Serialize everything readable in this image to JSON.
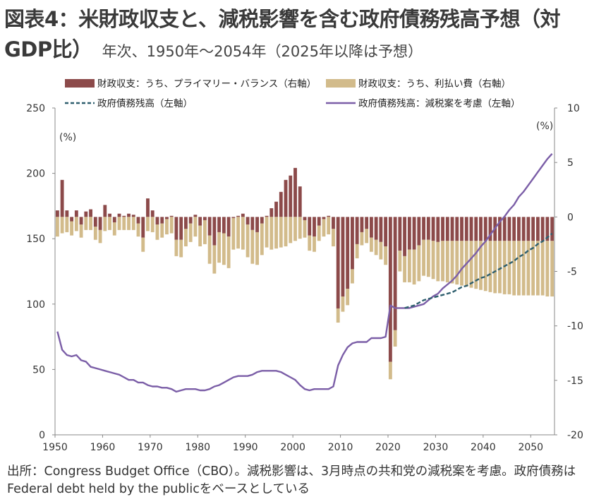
{
  "title_main": "図表4：米財政収支と、減税影響を含む政府債務残高予想（対GDP比）",
  "title_sub": "年次、1950年～2054年（2025年以降は予想）",
  "source": "出所：Congress Budget Office（CBO）。減税影響は、3月時点の共和党の減税案を考慮。政府債務はFederal debt held by the publicをベースとしている",
  "colors": {
    "primary": "#8c4a4a",
    "interest": "#d2bb8b",
    "debt_base": "#2e5f6e",
    "debt_cut": "#7b5ea7"
  },
  "chart_data": {
    "type": "bar+line",
    "legend": [
      "財政収支：うち、プライマリー・バランス（右軸）",
      "財政収支：うち、利払い費（右軸）",
      "政府債務残高（左軸）",
      "政府債務残高：減税案を考慮（左軸）"
    ],
    "left_axis": {
      "unit": "(%)",
      "ylim": [
        0,
        250
      ],
      "ticks": [
        0,
        50,
        100,
        150,
        200,
        250
      ]
    },
    "right_axis": {
      "unit": "(%)",
      "ylim": [
        -20,
        10
      ],
      "ticks": [
        -20,
        -15,
        -10,
        -5,
        0,
        5,
        10
      ]
    },
    "x_ticks": [
      1950,
      1960,
      1970,
      1980,
      1990,
      2000,
      2010,
      2020,
      2030,
      2040,
      2050
    ],
    "years": [
      1950,
      1951,
      1952,
      1953,
      1954,
      1955,
      1956,
      1957,
      1958,
      1959,
      1960,
      1961,
      1962,
      1963,
      1964,
      1965,
      1966,
      1967,
      1968,
      1969,
      1970,
      1971,
      1972,
      1973,
      1974,
      1975,
      1976,
      1977,
      1978,
      1979,
      1980,
      1981,
      1982,
      1983,
      1984,
      1985,
      1986,
      1987,
      1988,
      1989,
      1990,
      1991,
      1992,
      1993,
      1994,
      1995,
      1996,
      1997,
      1998,
      1999,
      2000,
      2001,
      2002,
      2003,
      2004,
      2005,
      2006,
      2007,
      2008,
      2009,
      2010,
      2011,
      2012,
      2013,
      2014,
      2015,
      2016,
      2017,
      2018,
      2019,
      2020,
      2021,
      2022,
      2023,
      2024,
      2025,
      2026,
      2027,
      2028,
      2029,
      2030,
      2031,
      2032,
      2033,
      2034,
      2035,
      2036,
      2037,
      2038,
      2039,
      2040,
      2041,
      2042,
      2043,
      2044,
      2045,
      2046,
      2047,
      2048,
      2049,
      2050,
      2051,
      2052,
      2053,
      2054
    ],
    "series": [
      {
        "name": "財政収支：うち、プライマリー・バランス（右軸）",
        "axis": "right",
        "values": [
          0.6,
          3.4,
          0.6,
          -0.4,
          0.6,
          -0.7,
          0.5,
          0.7,
          -0.9,
          -1.2,
          1.1,
          0.3,
          -0.5,
          0.3,
          0.1,
          0.3,
          0.2,
          -0.6,
          -1.9,
          1.7,
          0.6,
          -0.7,
          -0.6,
          -0.2,
          0.1,
          -2.1,
          -2.1,
          -1.1,
          -0.6,
          0.2,
          -0.8,
          -0.3,
          -1.7,
          -2.6,
          -1.4,
          -1.5,
          -1.8,
          -0.1,
          0.1,
          0.3,
          -0.7,
          -1.2,
          -1.4,
          -0.6,
          0.1,
          0.8,
          1.4,
          2.3,
          3.4,
          3.8,
          4.5,
          2.8,
          -0.3,
          -1.7,
          -1.8,
          -0.8,
          -0.2,
          0.1,
          -1.1,
          -8.4,
          -7.3,
          -6.6,
          -4.8,
          -2.5,
          -1.4,
          -1.1,
          -1.9,
          -2.1,
          -2.3,
          -2.7,
          -13.3,
          -10.4,
          -3.1,
          -3.6,
          -3.0,
          -3.0,
          -2.6,
          -2.1,
          -2.1,
          -2.2,
          -2.3,
          -2.2,
          -2.2,
          -2.2,
          -2.2,
          -2.2,
          -2.2,
          -2.2,
          -2.2,
          -2.2,
          -2.2,
          -2.2,
          -2.2,
          -2.2,
          -2.2,
          -2.2,
          -2.2,
          -2.2,
          -2.2,
          -2.2,
          -2.2,
          -2.2,
          -2.2,
          -2.2,
          -2.2
        ]
      },
      {
        "name": "財政収支：うち、利払い費（右軸）",
        "axis": "right",
        "values": [
          -1.8,
          -1.5,
          -1.4,
          -1.3,
          -1.3,
          -1.2,
          -1.2,
          -1.2,
          -1.2,
          -1.2,
          -1.3,
          -1.2,
          -1.2,
          -1.2,
          -1.2,
          -1.2,
          -1.2,
          -1.2,
          -1.3,
          -1.3,
          -1.4,
          -1.4,
          -1.3,
          -1.4,
          -1.5,
          -1.5,
          -1.6,
          -1.6,
          -1.7,
          -1.8,
          -1.9,
          -2.2,
          -2.6,
          -2.6,
          -2.8,
          -2.9,
          -2.9,
          -2.9,
          -2.9,
          -3.0,
          -3.0,
          -3.1,
          -3.0,
          -2.9,
          -2.8,
          -3.0,
          -2.9,
          -2.8,
          -2.7,
          -2.4,
          -2.2,
          -2.0,
          -1.6,
          -1.4,
          -1.4,
          -1.4,
          -1.6,
          -1.6,
          -1.6,
          -1.3,
          -1.4,
          -1.5,
          -1.3,
          -1.3,
          -1.2,
          -1.3,
          -1.3,
          -1.4,
          -1.6,
          -1.7,
          -1.6,
          -1.5,
          -1.9,
          -2.4,
          -3.0,
          -3.2,
          -3.3,
          -3.3,
          -3.4,
          -3.5,
          -3.6,
          -3.7,
          -3.8,
          -3.9,
          -4.0,
          -4.1,
          -4.2,
          -4.3,
          -4.4,
          -4.5,
          -4.6,
          -4.7,
          -4.8,
          -4.8,
          -4.9,
          -4.9,
          -5.0,
          -5.0,
          -5.0,
          -5.0,
          -5.0,
          -5.0,
          -5.0,
          -5.1,
          -5.1
        ]
      },
      {
        "name": "政府債務残高（左軸）",
        "axis": "left",
        "x": [
          2023,
          2024,
          2025,
          2026,
          2027,
          2028,
          2029,
          2030,
          2031,
          2032,
          2033,
          2034,
          2035,
          2036,
          2037,
          2038,
          2039,
          2040,
          2041,
          2042,
          2043,
          2044,
          2045,
          2046,
          2047,
          2048,
          2049,
          2050,
          2051,
          2052,
          2053,
          2054
        ],
        "values": [
          97,
          98,
          99,
          101,
          103,
          104,
          105,
          106,
          107,
          108,
          109,
          111,
          113,
          114,
          116,
          118,
          120,
          121,
          123,
          125,
          127,
          129,
          131,
          133,
          136,
          138,
          141,
          143,
          146,
          148,
          151,
          154
        ]
      },
      {
        "name": "政府債務残高：減税案を考慮（左軸）",
        "axis": "left",
        "values": [
          79,
          65,
          61,
          60,
          61,
          57,
          56,
          52,
          51,
          50,
          49,
          48,
          47,
          46,
          44,
          42,
          42,
          40,
          40,
          38,
          37,
          37,
          36,
          36,
          35,
          33,
          34,
          35,
          35,
          35,
          34,
          34,
          35,
          37,
          38,
          40,
          42,
          44,
          45,
          45,
          45,
          46,
          48,
          49,
          49,
          49,
          49,
          48,
          46,
          44,
          42,
          38,
          35,
          34,
          35,
          35,
          35,
          35,
          37,
          53,
          61,
          67,
          70,
          71,
          71,
          71,
          74,
          74,
          74,
          75,
          99,
          97,
          97,
          97,
          97,
          98,
          99,
          100,
          103,
          106,
          108,
          112,
          115,
          118,
          122,
          127,
          131,
          135,
          139,
          144,
          148,
          153,
          158,
          163,
          167,
          172,
          176,
          182,
          186,
          191,
          196,
          201,
          206,
          211,
          215
        ]
      }
    ]
  }
}
